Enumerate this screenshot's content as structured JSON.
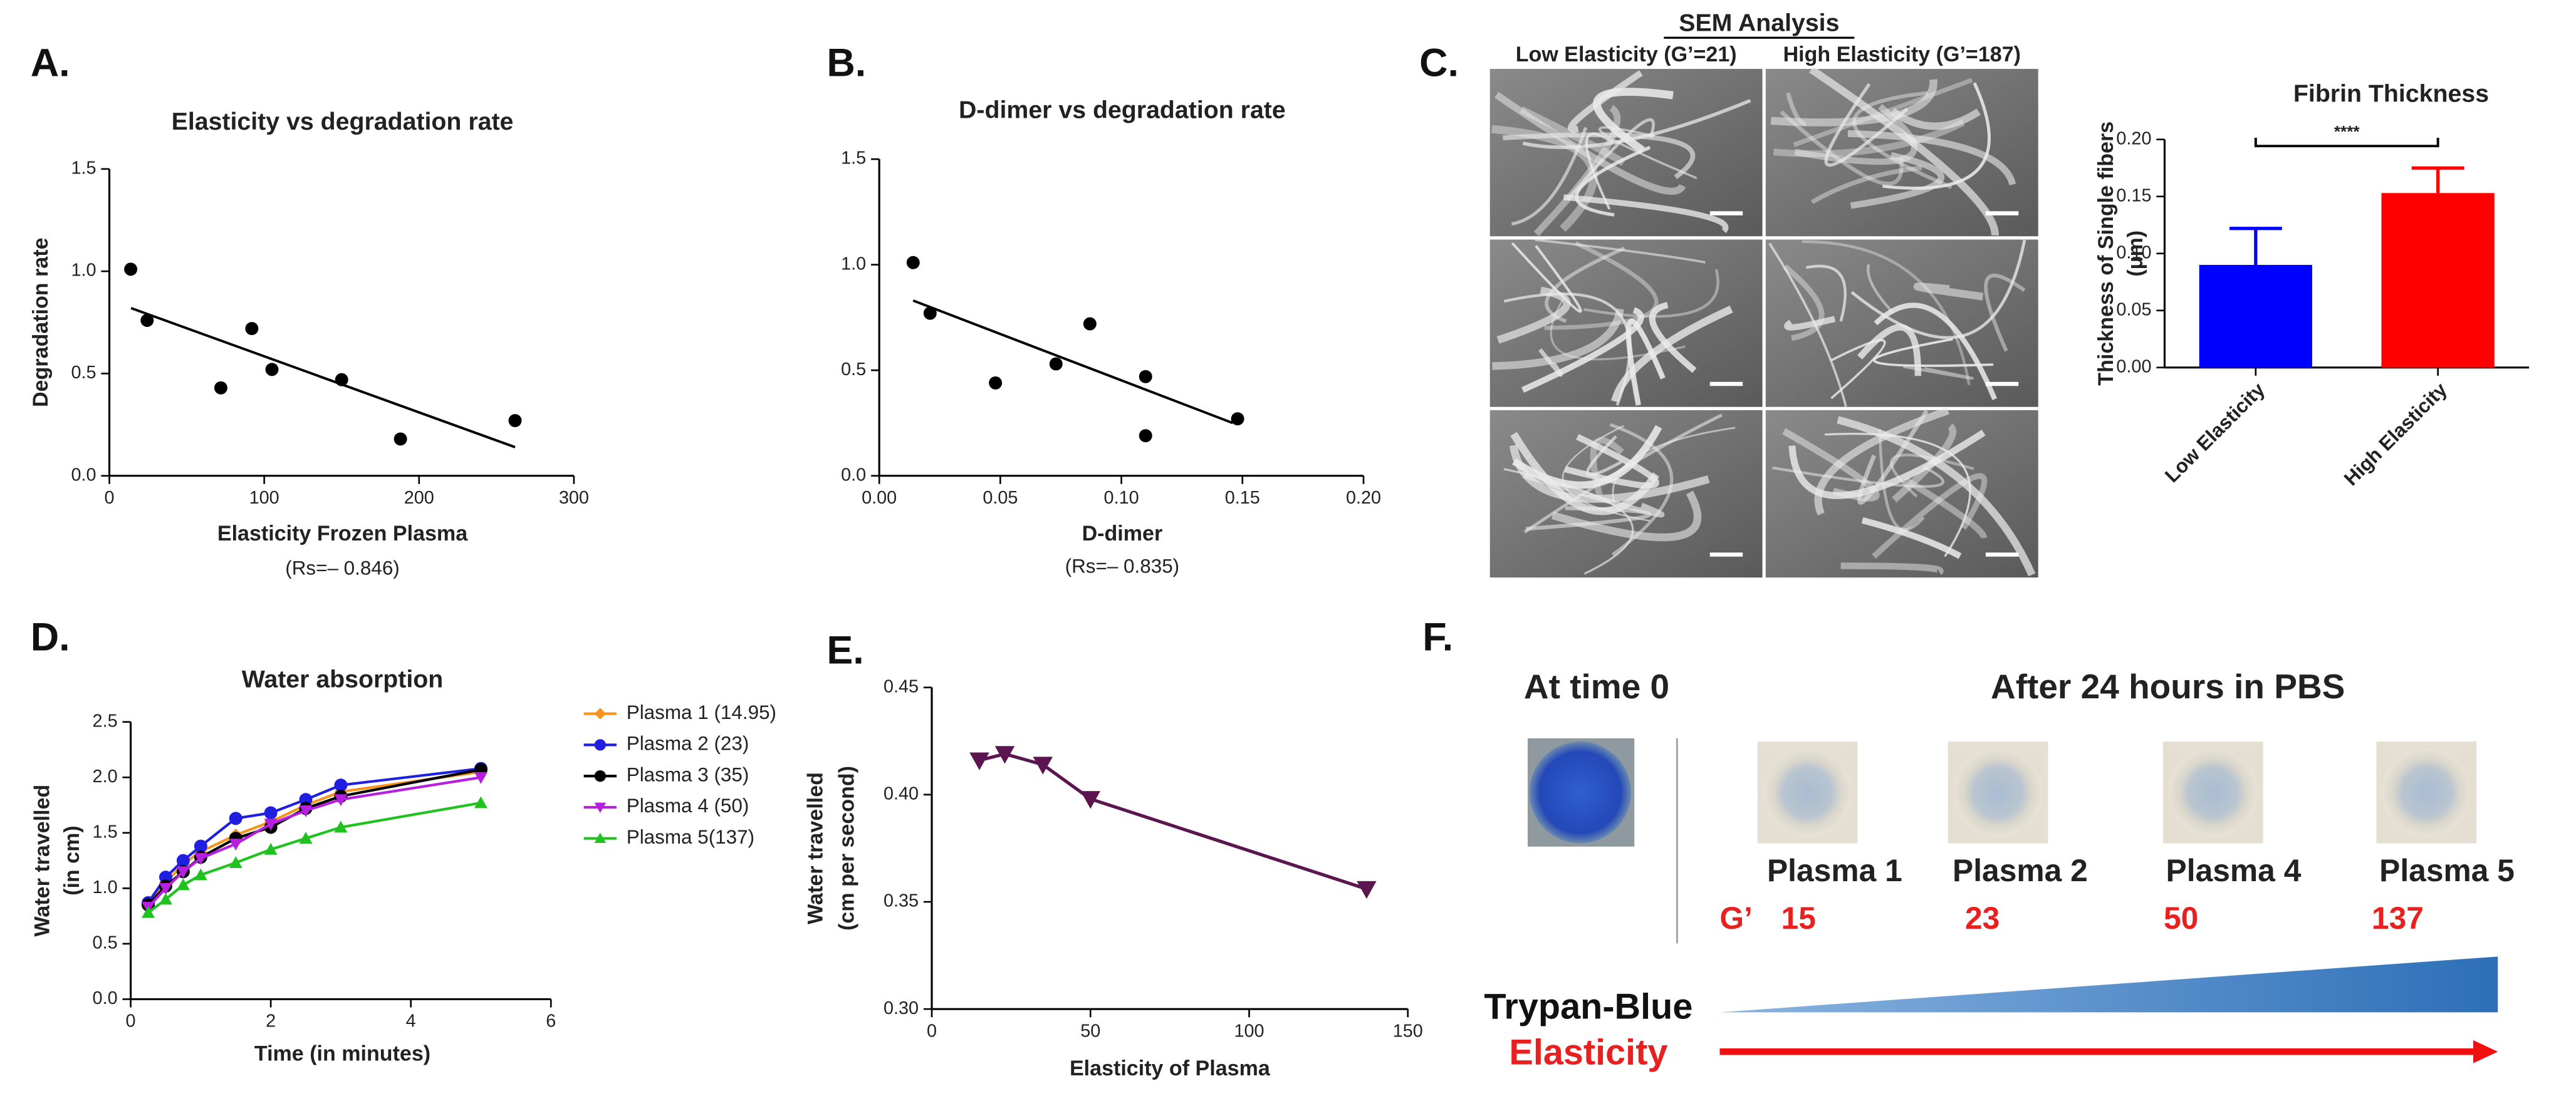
{
  "chart_data": [
    {
      "type": "scatter",
      "label": "A.",
      "title": "Elasticity vs degradation rate",
      "xlabel": "Elasticity Frozen Plasma",
      "ylabel": "Degradation rate",
      "note": "(Rs=– 0.846)",
      "x": [
        13.8,
        24.4,
        72,
        92,
        105,
        150,
        188,
        262
      ],
      "values": [
        1.01,
        0.76,
        0.43,
        0.72,
        0.52,
        0.47,
        0.18,
        0.27
      ],
      "color": "#000000",
      "fit_line": {
        "x": [
          14,
          262
        ],
        "y": [
          0.82,
          0.14
        ]
      },
      "xlim": [
        0,
        300
      ],
      "xticks": [
        0,
        100,
        200,
        300
      ],
      "ylim": [
        0,
        1.5
      ],
      "yticks": [
        {
          "value": 0,
          "label": "0.0"
        },
        {
          "value": 0.5,
          "label": "0.5"
        },
        {
          "value": 1,
          "label": "1.0"
        },
        1.5
      ]
    },
    {
      "type": "scatter",
      "label": "B.",
      "title": "D-dimer vs degradation rate",
      "xlabel": "D-dimer",
      "note": "(Rs=– 0.835)",
      "x": [
        0.014,
        0.021,
        0.048,
        0.073,
        0.087,
        0.11,
        0.11,
        0.148
      ],
      "values": [
        1.01,
        0.77,
        0.44,
        0.53,
        0.72,
        0.47,
        0.19,
        0.27
      ],
      "color": "#000000",
      "fit_line": {
        "x": [
          0.014,
          0.146
        ],
        "y": [
          0.83,
          0.25
        ]
      },
      "xlim": [
        0,
        0.2
      ],
      "xticks": [
        {
          "value": 0,
          "label": "0.00"
        },
        0.05,
        {
          "value": 0.1,
          "label": "0.10"
        },
        0.15,
        {
          "value": 0.2,
          "label": "0.20"
        }
      ],
      "ylim": [
        0,
        1.5
      ],
      "yticks": [
        {
          "value": 0,
          "label": "0.0"
        },
        0.5,
        {
          "value": 1,
          "label": "1.0"
        },
        1.5
      ]
    },
    {
      "type": "bar",
      "label": "C.",
      "title": "Fibrin Thickness",
      "ylabel": [
        "Thickness of Single fibers",
        "(μm)"
      ],
      "categories": [
        "Low Elasticity",
        "High Elasticity"
      ],
      "values": [
        0.09,
        0.153
      ],
      "errors": [
        0.032,
        0.022
      ],
      "colors": [
        "#0000ff",
        "#ff0000"
      ],
      "significance": "****",
      "ylim": [
        0,
        0.2
      ],
      "yticks": [
        {
          "value": 0,
          "label": "0.00"
        },
        0.05,
        {
          "value": 0.1,
          "label": "0.10"
        },
        0.15,
        {
          "value": 0.2,
          "label": "0.20"
        }
      ]
    },
    {
      "type": "line",
      "label": "D.",
      "title": "Water absorption",
      "xlabel": "Time (in minutes)",
      "ylabel": [
        "Water travelled",
        "(in cm)"
      ],
      "legend": "outside-right",
      "x": [
        0.25,
        0.5,
        0.75,
        1,
        1.5,
        2,
        2.5,
        3,
        5
      ],
      "series": [
        {
          "name": "Plasma 1 (14.95)",
          "color": "#f7941d",
          "marker": "diamond",
          "values": [
            0.85,
            1.05,
            1.22,
            1.33,
            1.48,
            1.6,
            1.75,
            1.87,
            2.05
          ]
        },
        {
          "name": "Plasma 2 (23)",
          "color": "#1f1fe0",
          "marker": "circle",
          "values": [
            0.87,
            1.1,
            1.25,
            1.38,
            1.63,
            1.68,
            1.8,
            1.93,
            2.08
          ]
        },
        {
          "name": "Plasma 3 (35)",
          "color": "#000000",
          "marker": "circle",
          "values": [
            0.85,
            1.02,
            1.15,
            1.28,
            1.45,
            1.55,
            1.72,
            1.83,
            2.07
          ]
        },
        {
          "name": "Plasma 4 (50)",
          "color": "#b61fe0",
          "marker": "triangle-down",
          "values": [
            0.83,
            1.0,
            1.15,
            1.27,
            1.4,
            1.58,
            1.7,
            1.8,
            2.0
          ]
        },
        {
          "name": "Plasma 5(137)",
          "color": "#1fc21f",
          "marker": "triangle-up",
          "values": [
            0.78,
            0.9,
            1.03,
            1.12,
            1.23,
            1.35,
            1.45,
            1.55,
            1.77
          ]
        }
      ],
      "xlim": [
        0,
        6
      ],
      "xticks": [
        0,
        2,
        4,
        6
      ],
      "ylim": [
        0,
        2.5
      ],
      "yticks": [
        {
          "value": 0,
          "label": "0.0"
        },
        0.5,
        {
          "value": 1,
          "label": "1.0"
        },
        1.5,
        {
          "value": 2,
          "label": "2.0"
        },
        2.5
      ]
    },
    {
      "type": "line",
      "label": "E.",
      "xlabel": "Elasticity of Plasma",
      "ylabel": [
        "Water travelled",
        "(cm per second)"
      ],
      "x": [
        15,
        23,
        35,
        50,
        137
      ],
      "series": [
        {
          "color": "#5b1650",
          "marker": "triangle-down",
          "values": [
            0.416,
            0.419,
            0.414,
            0.398,
            0.356
          ]
        }
      ],
      "xlim": [
        0,
        150
      ],
      "xticks": [
        0,
        50,
        100,
        150
      ],
      "ylim": [
        0.3,
        0.45
      ],
      "yticks": [
        {
          "value": 0.3,
          "label": "0.30"
        },
        0.35,
        {
          "value": 0.4,
          "label": "0.40"
        },
        0.45
      ]
    }
  ],
  "sem": {
    "title": "SEM Analysis",
    "columns": [
      "Low Elasticity (G’=21)",
      "High Elasticity (G’=187)"
    ]
  },
  "panel_f": {
    "label": "F.",
    "time0": "At time 0",
    "after": "After 24 hours in PBS",
    "samples": [
      "Plasma 1",
      "Plasma 2",
      "Plasma 4",
      "Plasma 5"
    ],
    "g_label": "G’",
    "g_values": [
      "15",
      "23",
      "50",
      "137"
    ],
    "trypan": "Trypan-Blue",
    "elasticity": "Elasticity"
  }
}
